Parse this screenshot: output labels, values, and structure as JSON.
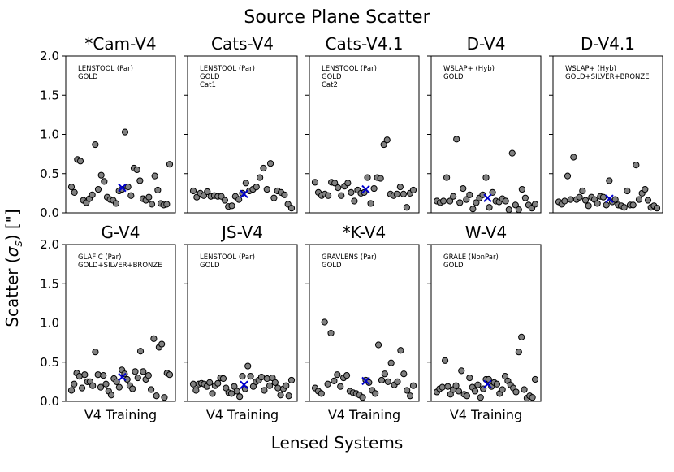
{
  "figure": {
    "title": "Source Plane Scatter",
    "xlabel": "Lensed Systems",
    "ylabel": "Scatter (σs) [\"]",
    "ylabel_main": "Scatter (",
    "ylabel_sigma": "σ",
    "ylabel_sub": "s",
    "ylabel_tail": ") [\"]"
  },
  "colors": {
    "points": "#808080",
    "point_edge": "#000000",
    "mean_marker": "#0000cc",
    "axes": "#000000"
  },
  "chart_data": [
    {
      "type": "scatter",
      "title": "*Cam-V4",
      "annotation": [
        "LENSTOOL (Par)",
        "GOLD"
      ],
      "xlabel": "",
      "xticklabels": [],
      "ylim": [
        0,
        2.0
      ],
      "yticks": [
        "0.0",
        "0.5",
        "1.0",
        "1.5",
        "2.0"
      ],
      "values": [
        0.33,
        0.26,
        0.68,
        0.66,
        0.16,
        0.13,
        0.18,
        0.23,
        0.87,
        0.3,
        0.48,
        0.4,
        0.2,
        0.17,
        0.16,
        0.12,
        0.28,
        0.3,
        1.03,
        0.33,
        0.22,
        0.57,
        0.55,
        0.41,
        0.18,
        0.16,
        0.2,
        0.11,
        0.47,
        0.29,
        0.12,
        0.1,
        0.11,
        0.62
      ],
      "mean": 0.32
    },
    {
      "type": "scatter",
      "title": "Cats-V4",
      "annotation": [
        "LENSTOOL (Par)",
        "GOLD",
        "Cat1"
      ],
      "xlabel": "",
      "xticklabels": [],
      "ylim": [
        0,
        2.0
      ],
      "values": [
        0.28,
        0.2,
        0.25,
        0.22,
        0.27,
        0.21,
        0.22,
        0.21,
        0.21,
        0.16,
        0.08,
        0.09,
        0.21,
        0.17,
        0.25,
        0.38,
        0.28,
        0.3,
        0.33,
        0.45,
        0.57,
        0.3,
        0.63,
        0.19,
        0.28,
        0.26,
        0.23,
        0.11,
        0.06
      ],
      "mean": 0.24
    },
    {
      "type": "scatter",
      "title": "Cats-V4.1",
      "annotation": [
        "LENSTOOL (Par)",
        "GOLD",
        "Cat2"
      ],
      "xlabel": "",
      "xticklabels": [],
      "ylim": [
        0,
        2.0
      ],
      "values": [
        0.39,
        0.26,
        0.22,
        0.24,
        0.22,
        0.39,
        0.38,
        0.32,
        0.22,
        0.34,
        0.38,
        0.26,
        0.15,
        0.29,
        0.25,
        0.26,
        0.45,
        0.12,
        0.31,
        0.45,
        0.44,
        0.87,
        0.93,
        0.24,
        0.22,
        0.24,
        0.33,
        0.24,
        0.07,
        0.25,
        0.29
      ],
      "mean": 0.3
    },
    {
      "type": "scatter",
      "title": "D-V4",
      "annotation": [
        "WSLAP+ (Hyb)",
        "GOLD"
      ],
      "xlabel": "",
      "xticklabels": [],
      "ylim": [
        0,
        2.0
      ],
      "values": [
        0.15,
        0.13,
        0.15,
        0.45,
        0.15,
        0.21,
        0.94,
        0.13,
        0.31,
        0.17,
        0.23,
        0.05,
        0.13,
        0.19,
        0.23,
        0.45,
        0.07,
        0.26,
        0.15,
        0.14,
        0.18,
        0.15,
        0.04,
        0.76,
        0.1,
        0.04,
        0.3,
        0.19,
        0.1,
        0.06,
        0.11
      ],
      "mean": 0.19
    },
    {
      "type": "scatter",
      "title": "D-V4.1",
      "annotation": [
        "WSLAP+ (Hyb)",
        "GOLD+SILVER+BRONZE"
      ],
      "xlabel": "",
      "xticklabels": [],
      "ylim": [
        0,
        2.0
      ],
      "values": [
        0.14,
        0.11,
        0.15,
        0.47,
        0.17,
        0.71,
        0.17,
        0.2,
        0.28,
        0.16,
        0.09,
        0.2,
        0.17,
        0.12,
        0.21,
        0.2,
        0.1,
        0.41,
        0.14,
        0.17,
        0.1,
        0.09,
        0.07,
        0.28,
        0.1,
        0.1,
        0.61,
        0.17,
        0.25,
        0.3,
        0.16,
        0.07,
        0.09,
        0.06
      ],
      "mean": 0.18
    },
    {
      "type": "scatter",
      "title": "G-V4",
      "annotation": [
        "GLAFIC (Par)",
        "GOLD+SILVER+BRONZE"
      ],
      "xlabel": "V4 Training",
      "xticklabels": [
        "V4 Training"
      ],
      "ylim": [
        0,
        2.0
      ],
      "yticks": [
        "0.0",
        "0.5",
        "1.0",
        "1.5",
        "2.0"
      ],
      "values": [
        0.14,
        0.22,
        0.36,
        0.32,
        0.17,
        0.34,
        0.25,
        0.25,
        0.2,
        0.63,
        0.34,
        0.18,
        0.33,
        0.22,
        0.13,
        0.08,
        0.29,
        0.25,
        0.18,
        0.4,
        0.35,
        0.28,
        0.2,
        0.16,
        0.38,
        0.3,
        0.64,
        0.38,
        0.28,
        0.33,
        0.15,
        0.8,
        0.07,
        0.69,
        0.73,
        0.05,
        0.36,
        0.34
      ],
      "mean": 0.31
    },
    {
      "type": "scatter",
      "title": "JS-V4",
      "annotation": [
        "LENSTOOL (Par)",
        "GOLD"
      ],
      "xlabel": "V4 Training",
      "xticklabels": [
        "V4 Training"
      ],
      "ylim": [
        0,
        2.0
      ],
      "values": [
        0.22,
        0.14,
        0.22,
        0.23,
        0.22,
        0.19,
        0.24,
        0.1,
        0.2,
        0.23,
        0.3,
        0.29,
        0.17,
        0.11,
        0.1,
        0.19,
        0.13,
        0.06,
        0.32,
        0.16,
        0.45,
        0.32,
        0.19,
        0.25,
        0.27,
        0.31,
        0.14,
        0.29,
        0.2,
        0.3,
        0.24,
        0.17,
        0.08,
        0.16,
        0.2,
        0.07,
        0.27
      ],
      "mean": 0.21
    },
    {
      "type": "scatter",
      "title": "*K-V4",
      "annotation": [
        "GRAVLENS (Par)",
        "GOLD"
      ],
      "xlabel": "V4 Training",
      "xticklabels": [
        "V4 Training"
      ],
      "ylim": [
        0,
        2.0
      ],
      "values": [
        0.17,
        0.13,
        0.1,
        1.01,
        0.22,
        0.87,
        0.26,
        0.34,
        0.19,
        0.3,
        0.33,
        0.13,
        0.11,
        0.1,
        0.08,
        0.05,
        0.27,
        0.24,
        0.14,
        0.1,
        0.72,
        0.27,
        0.35,
        0.25,
        0.49,
        0.21,
        0.25,
        0.65,
        0.35,
        0.14,
        0.07,
        0.2
      ],
      "mean": 0.26
    },
    {
      "type": "scatter",
      "title": "W-V4",
      "annotation": [
        "GRALE (NonPar)",
        "GOLD"
      ],
      "xlabel": "V4 Training",
      "xticklabels": [
        "V4 Training"
      ],
      "ylim": [
        0,
        2.0
      ],
      "values": [
        0.12,
        0.16,
        0.18,
        0.52,
        0.19,
        0.09,
        0.15,
        0.2,
        0.13,
        0.39,
        0.09,
        0.07,
        0.3,
        0.18,
        0.13,
        0.21,
        0.05,
        0.16,
        0.28,
        0.28,
        0.19,
        0.24,
        0.22,
        0.1,
        0.15,
        0.32,
        0.26,
        0.21,
        0.17,
        0.12,
        0.63,
        0.82,
        0.15,
        0.04,
        0.07,
        0.05,
        0.28
      ],
      "mean": 0.22
    }
  ]
}
